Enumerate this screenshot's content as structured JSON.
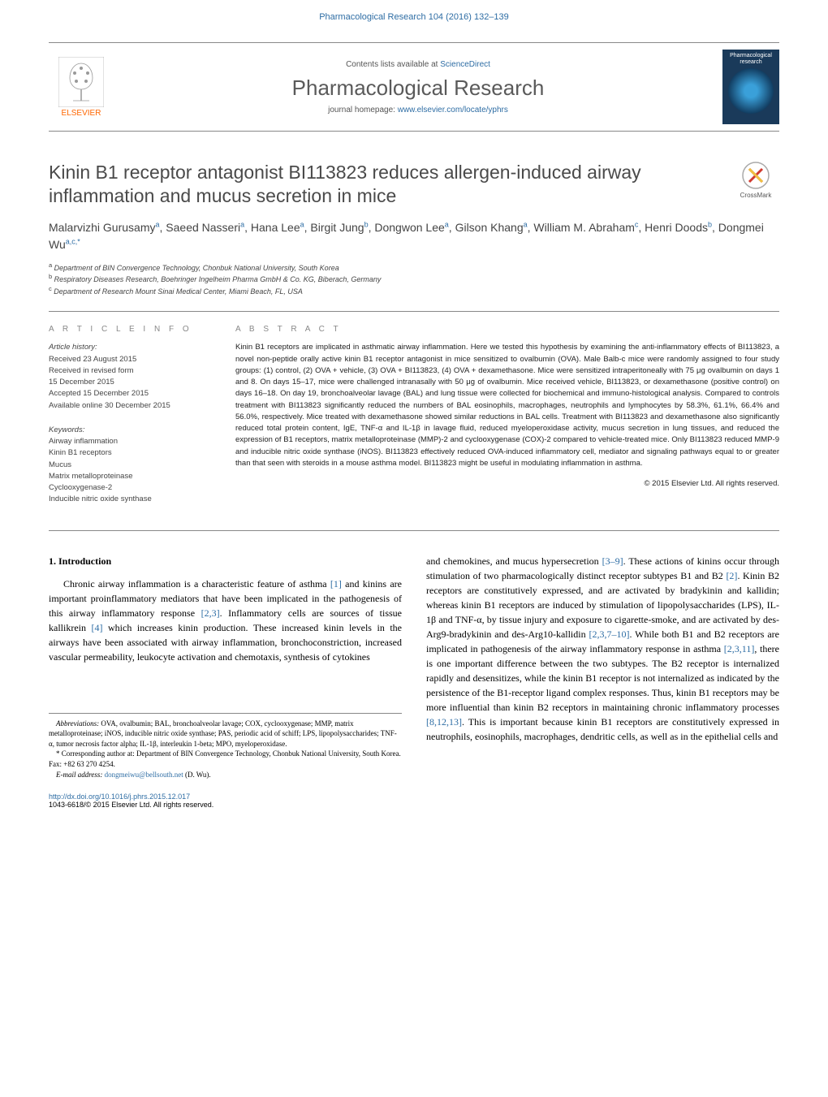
{
  "running_head": "Pharmacological Research 104 (2016) 132–139",
  "contents_prefix": "Contents lists available at ",
  "contents_link": "ScienceDirect",
  "journal_title": "Pharmacological Research",
  "homepage_prefix": "journal homepage: ",
  "homepage_link": "www.elsevier.com/locate/yphrs",
  "elsevier_label": "ELSEVIER",
  "cover_title_line1": "Pharmacological",
  "cover_title_line2": "research",
  "crossmark_label": "CrossMark",
  "article_title": "Kinin B1 receptor antagonist BI113823 reduces allergen-induced airway inflammation and mucus secretion in mice",
  "authors_html": "Malarvizhi Gurusamy<sup>a</sup>, Saeed Nasseri<sup>a</sup>, Hana Lee<sup>a</sup>, Birgit Jung<sup>b</sup>, Dongwon Lee<sup>a</sup>, Gilson Khang<sup>a</sup>, William M. Abraham<sup>c</sup>, Henri Doods<sup>b</sup>, Dongmei Wu<sup>a,c,*</sup>",
  "affiliations": [
    {
      "sup": "a",
      "text": "Department of BIN Convergence Technology, Chonbuk National University, South Korea"
    },
    {
      "sup": "b",
      "text": "Respiratory Diseases Research, Boehringer Ingelheim Pharma GmbH & Co. KG, Biberach, Germany"
    },
    {
      "sup": "c",
      "text": "Department of Research Mount Sinai Medical Center, Miami Beach, FL, USA"
    }
  ],
  "info_label": "a r t i c l e   i n f o",
  "history_heading": "Article history:",
  "history_lines": [
    "Received 23 August 2015",
    "Received in revised form",
    "15 December 2015",
    "Accepted 15 December 2015",
    "Available online 30 December 2015"
  ],
  "keywords_heading": "Keywords:",
  "keywords": [
    "Airway inflammation",
    "Kinin B1 receptors",
    "Mucus",
    "Matrix metalloproteinase",
    "Cyclooxygenase-2",
    "Inducible nitric oxide synthase"
  ],
  "abstract_label": "a b s t r a c t",
  "abstract_body": "Kinin B1 receptors are implicated in asthmatic airway inflammation. Here we tested this hypothesis by examining the anti-inflammatory effects of BI113823, a novel non-peptide orally active kinin B1 receptor antagonist in mice sensitized to ovalbumin (OVA). Male Balb-c mice were randomly assigned to four study groups: (1) control, (2) OVA + vehicle, (3) OVA + BI113823, (4) OVA + dexamethasone. Mice were sensitized intraperitoneally with 75 μg ovalbumin on days 1 and 8. On days 15–17, mice were challenged intranasally with 50 μg of ovalbumin. Mice received vehicle, BI113823, or dexamethasone (positive control) on days 16–18. On day 19, bronchoalveolar lavage (BAL) and lung tissue were collected for biochemical and immuno-histological analysis. Compared to controls treatment with BI113823 significantly reduced the numbers of BAL eosinophils, macrophages, neutrophils and lymphocytes by 58.3%, 61.1%, 66.4% and 56.0%, respectively. Mice treated with dexamethasone showed similar reductions in BAL cells. Treatment with BI113823 and dexamethasone also significantly reduced total protein content, IgE, TNF-α and IL-1β in lavage fluid, reduced myeloperoxidase activity, mucus secretion in lung tissues, and reduced the expression of B1 receptors, matrix metalloproteinase (MMP)-2 and cyclooxygenase (COX)-2 compared to vehicle-treated mice. Only BI113823 reduced MMP-9 and inducible nitric oxide synthase (iNOS). BI113823 effectively reduced OVA-induced inflammatory cell, mediator and signaling pathways equal to or greater than that seen with steroids in a mouse asthma model. BI113823 might be useful in modulating inflammation in asthma.",
  "copyright": "© 2015 Elsevier Ltd. All rights reserved.",
  "section1_heading": "1. Introduction",
  "col1_p1_a": "Chronic airway inflammation is a characteristic feature of asthma ",
  "col1_p1_cite1": "[1]",
  "col1_p1_b": " and kinins are important proinflammatory mediators that have been implicated in the pathogenesis of this airway inflammatory response ",
  "col1_p1_cite2": "[2,3]",
  "col1_p1_c": ". Inflammatory cells are sources of tissue kallikrein ",
  "col1_p1_cite3": "[4]",
  "col1_p1_d": " which increases kinin production. These increased kinin levels in the airways have been associated with airway inflammation, bronchoconstriction, increased vascular permeability, leukocyte activation and chemotaxis, synthesis of cytokines",
  "col2_p1_a": "and chemokines, and mucus hypersecretion ",
  "col2_p1_cite1": "[3–9]",
  "col2_p1_b": ". These actions of kinins occur through stimulation of two pharmacologically distinct receptor subtypes B1 and B2 ",
  "col2_p1_cite2": "[2]",
  "col2_p1_c": ". Kinin B2 receptors are constitutively expressed, and are activated by bradykinin and kallidin; whereas kinin B1 receptors are induced by stimulation of lipopolysaccharides (LPS), IL-1β and TNF-α, by tissue injury and exposure to cigarette-smoke, and are activated by des-Arg9-bradykinin and des-Arg10-kallidin ",
  "col2_p1_cite3": "[2,3,7–10]",
  "col2_p1_d": ". While both B1 and B2 receptors are implicated in pathogenesis of the airway inflammatory response in asthma ",
  "col2_p1_cite4": "[2,3,11]",
  "col2_p1_e": ", there is one important difference between the two subtypes. The B2 receptor is internalized rapidly and desensitizes, while the kinin B1 receptor is not internalized as indicated by the persistence of the B1-receptor ligand complex responses. Thus, kinin B1 receptors may be more influential than kinin B2 receptors in maintaining chronic inflammatory processes ",
  "col2_p1_cite5": "[8,12,13]",
  "col2_p1_f": ". This is important because kinin B1 receptors are constitutively expressed in neutrophils, eosinophils, macrophages, dendritic cells, as well as in the epithelial cells and",
  "abbrev_label": "Abbreviations:",
  "abbrev_text": " OVA, ovalbumin; BAL, bronchoalveolar lavage; COX, cyclooxygenase; MMP, matrix metalloproteinase; iNOS, inducible nitric oxide synthase; PAS, periodic acid of schiff; LPS, lipopolysaccharides; TNF-α, tumor necrosis factor alpha; IL-1β, interleukin 1-beta; MPO, myeloperoxidase.",
  "corresp_marker": "*",
  "corresp_text": " Corresponding author at: Department of BIN Convergence Technology, Chonbuk National University, South Korea. Fax: +82 63 270 4254.",
  "email_label": "E-mail address:",
  "email_value": "dongmeiwu@bellsouth.net",
  "email_suffix": " (D. Wu).",
  "doi": "http://dx.doi.org/10.1016/j.phrs.2015.12.017",
  "issn_line": "1043-6618/© 2015 Elsevier Ltd. All rights reserved.",
  "colors": {
    "link": "#2e6da4",
    "text": "#000000",
    "muted": "#555555",
    "orange": "#ff6600",
    "cover_bg": "#1a3a5a"
  },
  "typography": {
    "title_fontsize": 23,
    "journal_title_fontsize": 26,
    "body_fontsize": 12,
    "abstract_fontsize": 9.5,
    "footnote_fontsize": 9
  }
}
